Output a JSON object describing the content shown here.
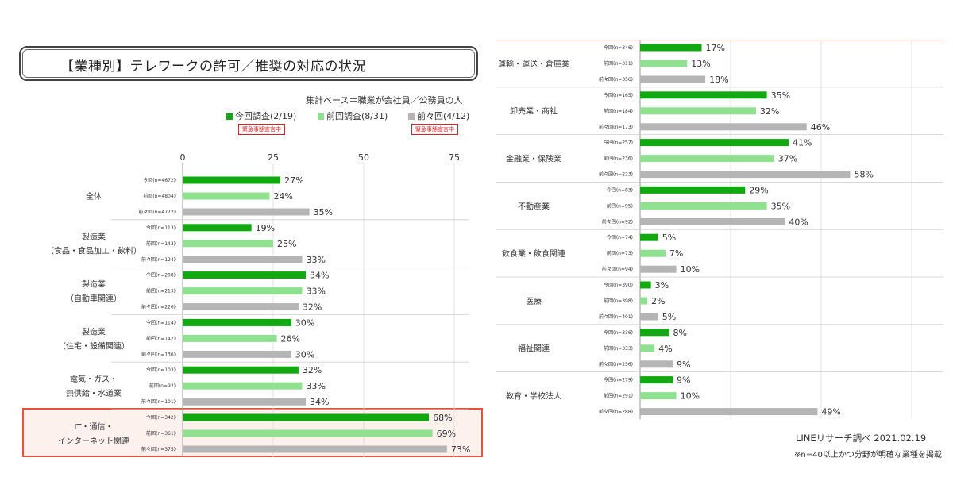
{
  "title": "【業種別】テレワークの許可／推奨の対応の状況",
  "basis": "集計ベース＝職業が会社員／公務員の人",
  "legend": [
    {
      "label": "今回調査(2/19)",
      "color": "#12a812"
    },
    {
      "label": "前回調査(8/31)",
      "color": "#8fe08f"
    },
    {
      "label": "前々回(4/12)",
      "color": "#b5b5b5"
    }
  ],
  "emergency_tag": "緊急事態宣言中",
  "source": "LINEリサーチ調べ 2021.02.19",
  "note": "※n=40以上かつ分野が明確な業種を掲載",
  "chart_data": {
    "type": "bar",
    "orientation": "horizontal",
    "unit": "%",
    "xlim": [
      0,
      75
    ],
    "xticks": [
      "0",
      "25",
      "50",
      "75"
    ],
    "series_names": [
      "今回調査(2/19)",
      "前回調査(8/31)",
      "前々回(4/12)"
    ],
    "colors": [
      "#12a812",
      "#8fe08f",
      "#b5b5b5"
    ],
    "groups": [
      {
        "label": [
          "全体"
        ],
        "rows": [
          {
            "label": "今回(n=4672)",
            "value": 27
          },
          {
            "label": "前回(n=4804)",
            "value": 24
          },
          {
            "label": "前々回(n=4772)",
            "value": 35
          }
        ]
      },
      {
        "label": [
          "製造業",
          "（食品・食品加工・飲料）"
        ],
        "rows": [
          {
            "label": "今回(n=113)",
            "value": 19
          },
          {
            "label": "前回(n=143)",
            "value": 25
          },
          {
            "label": "前々回(n=124)",
            "value": 33
          }
        ]
      },
      {
        "label": [
          "製造業",
          "（自動車関連）"
        ],
        "rows": [
          {
            "label": "今回(n=208)",
            "value": 34
          },
          {
            "label": "前回(n=213)",
            "value": 33
          },
          {
            "label": "前々回(n=226)",
            "value": 32
          }
        ]
      },
      {
        "label": [
          "製造業",
          "（住宅・設備関連）"
        ],
        "rows": [
          {
            "label": "今回(n=114)",
            "value": 30
          },
          {
            "label": "前回(n=142)",
            "value": 26
          },
          {
            "label": "前々回(n=136)",
            "value": 30
          }
        ]
      },
      {
        "label": [
          "電気・ガス・",
          "熱供給・水道業"
        ],
        "rows": [
          {
            "label": "今回(n=103)",
            "value": 32
          },
          {
            "label": "前回(n=92)",
            "value": 33
          },
          {
            "label": "前々回(n=101)",
            "value": 34
          }
        ]
      },
      {
        "label": [
          "IT・通信・",
          "インターネット関連"
        ],
        "highlight": true,
        "rows": [
          {
            "label": "今回(n=342)",
            "value": 68
          },
          {
            "label": "前回(n=361)",
            "value": 69
          },
          {
            "label": "前々回(n=375)",
            "value": 73
          }
        ]
      },
      {
        "label": [
          "運輸・運送・倉庫業"
        ],
        "rows": [
          {
            "label": "今回(n=346)",
            "value": 17
          },
          {
            "label": "前回(n=311)",
            "value": 13
          },
          {
            "label": "前々回(n=356)",
            "value": 18
          }
        ]
      },
      {
        "label": [
          "卸売業・商社"
        ],
        "rows": [
          {
            "label": "今回(n=165)",
            "value": 35
          },
          {
            "label": "前回(n=184)",
            "value": 32
          },
          {
            "label": "前々回(n=173)",
            "value": 46
          }
        ]
      },
      {
        "label": [
          "金融業・保険業"
        ],
        "rows": [
          {
            "label": "今回(n=257)",
            "value": 41
          },
          {
            "label": "前回(n=236)",
            "value": 37
          },
          {
            "label": "前々回(n=223)",
            "value": 58
          }
        ]
      },
      {
        "label": [
          "不動産業"
        ],
        "rows": [
          {
            "label": "今回(n=83)",
            "value": 29
          },
          {
            "label": "前回(n=95)",
            "value": 35
          },
          {
            "label": "前々回(n=92)",
            "value": 40
          }
        ]
      },
      {
        "label": [
          "飲食業・飲食関連"
        ],
        "rows": [
          {
            "label": "今回(n=74)",
            "value": 5
          },
          {
            "label": "前回(n=73)",
            "value": 7
          },
          {
            "label": "前々回(n=94)",
            "value": 10
          }
        ]
      },
      {
        "label": [
          "医療"
        ],
        "rows": [
          {
            "label": "今回(n=390)",
            "value": 3
          },
          {
            "label": "前回(n=398)",
            "value": 2
          },
          {
            "label": "前々回(n=401)",
            "value": 5
          }
        ]
      },
      {
        "label": [
          "福祉関連"
        ],
        "rows": [
          {
            "label": "今回(n=336)",
            "value": 8
          },
          {
            "label": "前回(n=333)",
            "value": 4
          },
          {
            "label": "前々回(n=256)",
            "value": 9
          }
        ]
      },
      {
        "label": [
          "教育・学校法人"
        ],
        "rows": [
          {
            "label": "今回(n=279)",
            "value": 9
          },
          {
            "label": "前回(n=291)",
            "value": 10
          },
          {
            "label": "前々回(n=288)",
            "value": 49
          }
        ]
      }
    ]
  }
}
